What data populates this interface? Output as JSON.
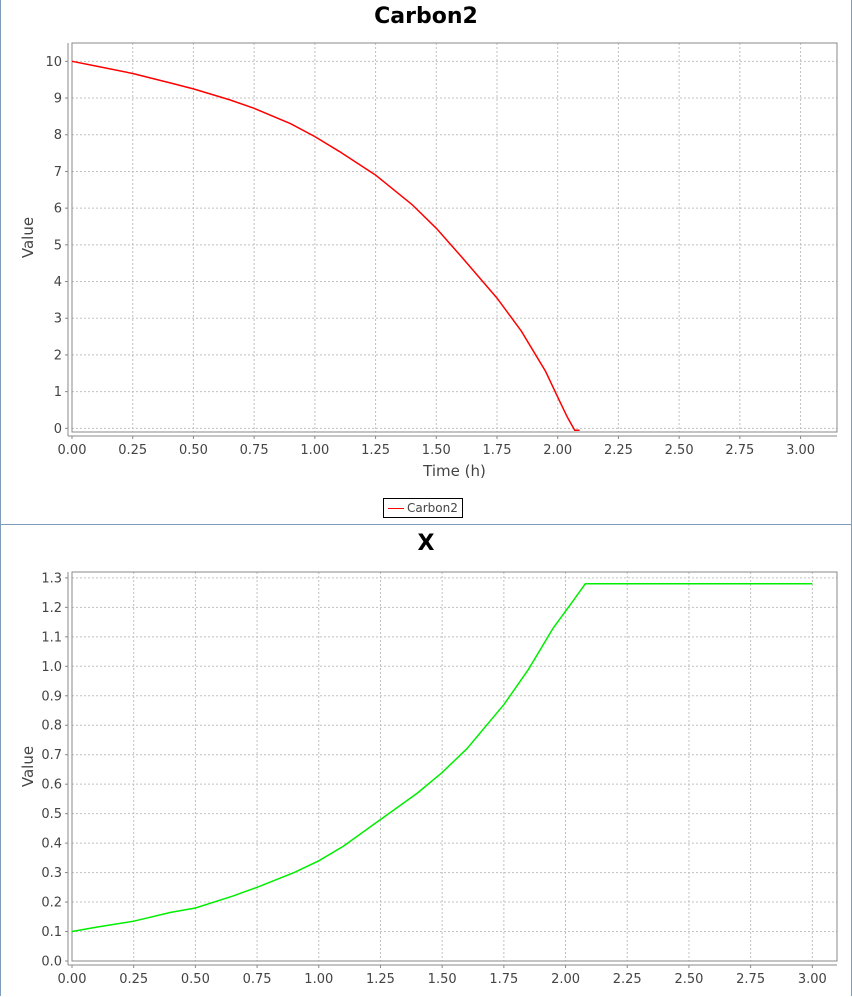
{
  "chart_data": [
    {
      "type": "line",
      "title": "Carbon2",
      "xlabel": "Time (h)",
      "ylabel": "Value",
      "xlim": [
        0,
        3.15
      ],
      "ylim": [
        -0.1,
        10.5
      ],
      "x_ticks": [
        "0.00",
        "0.25",
        "0.50",
        "0.75",
        "1.00",
        "1.25",
        "1.50",
        "1.75",
        "2.00",
        "2.25",
        "2.50",
        "2.75",
        "3.00"
      ],
      "y_ticks": [
        "0",
        "1",
        "2",
        "3",
        "4",
        "5",
        "6",
        "7",
        "8",
        "9",
        "10"
      ],
      "grid": true,
      "legend": "bottom-center",
      "series": [
        {
          "name": "Carbon2",
          "color": "#ff0000",
          "x": [
            0.0,
            0.1,
            0.25,
            0.4,
            0.5,
            0.65,
            0.75,
            0.9,
            1.0,
            1.1,
            1.25,
            1.4,
            1.5,
            1.6,
            1.75,
            1.85,
            1.95,
            2.0,
            2.04,
            2.07,
            2.08,
            2.09
          ],
          "y": [
            10.0,
            9.87,
            9.67,
            9.42,
            9.25,
            8.95,
            8.72,
            8.3,
            7.95,
            7.55,
            6.9,
            6.1,
            5.45,
            4.7,
            3.55,
            2.65,
            1.55,
            0.85,
            0.3,
            -0.05,
            -0.05,
            -0.05
          ]
        }
      ]
    },
    {
      "type": "line",
      "title": "X",
      "xlabel": "",
      "ylabel": "Value",
      "xlim": [
        0,
        3.1
      ],
      "ylim": [
        0,
        1.32
      ],
      "x_ticks": [
        "0.00",
        "0.25",
        "0.50",
        "0.75",
        "1.00",
        "1.25",
        "1.50",
        "1.75",
        "2.00",
        "2.25",
        "2.50",
        "2.75",
        "3.00"
      ],
      "y_ticks": [
        "0.0",
        "0.1",
        "0.2",
        "0.3",
        "0.4",
        "0.5",
        "0.6",
        "0.7",
        "0.8",
        "0.9",
        "1.0",
        "1.1",
        "1.2",
        "1.3"
      ],
      "grid": true,
      "legend": "none",
      "series": [
        {
          "color": "#00ee00",
          "x": [
            0.0,
            0.1,
            0.25,
            0.4,
            0.5,
            0.65,
            0.75,
            0.9,
            1.0,
            1.1,
            1.25,
            1.4,
            1.5,
            1.6,
            1.75,
            1.85,
            1.95,
            2.02,
            2.08,
            2.2,
            2.5,
            2.75,
            3.0
          ],
          "y": [
            0.1,
            0.115,
            0.135,
            0.165,
            0.18,
            0.22,
            0.25,
            0.3,
            0.34,
            0.39,
            0.48,
            0.57,
            0.64,
            0.72,
            0.87,
            0.99,
            1.13,
            1.21,
            1.28,
            1.28,
            1.28,
            1.28,
            1.28
          ]
        }
      ]
    }
  ]
}
